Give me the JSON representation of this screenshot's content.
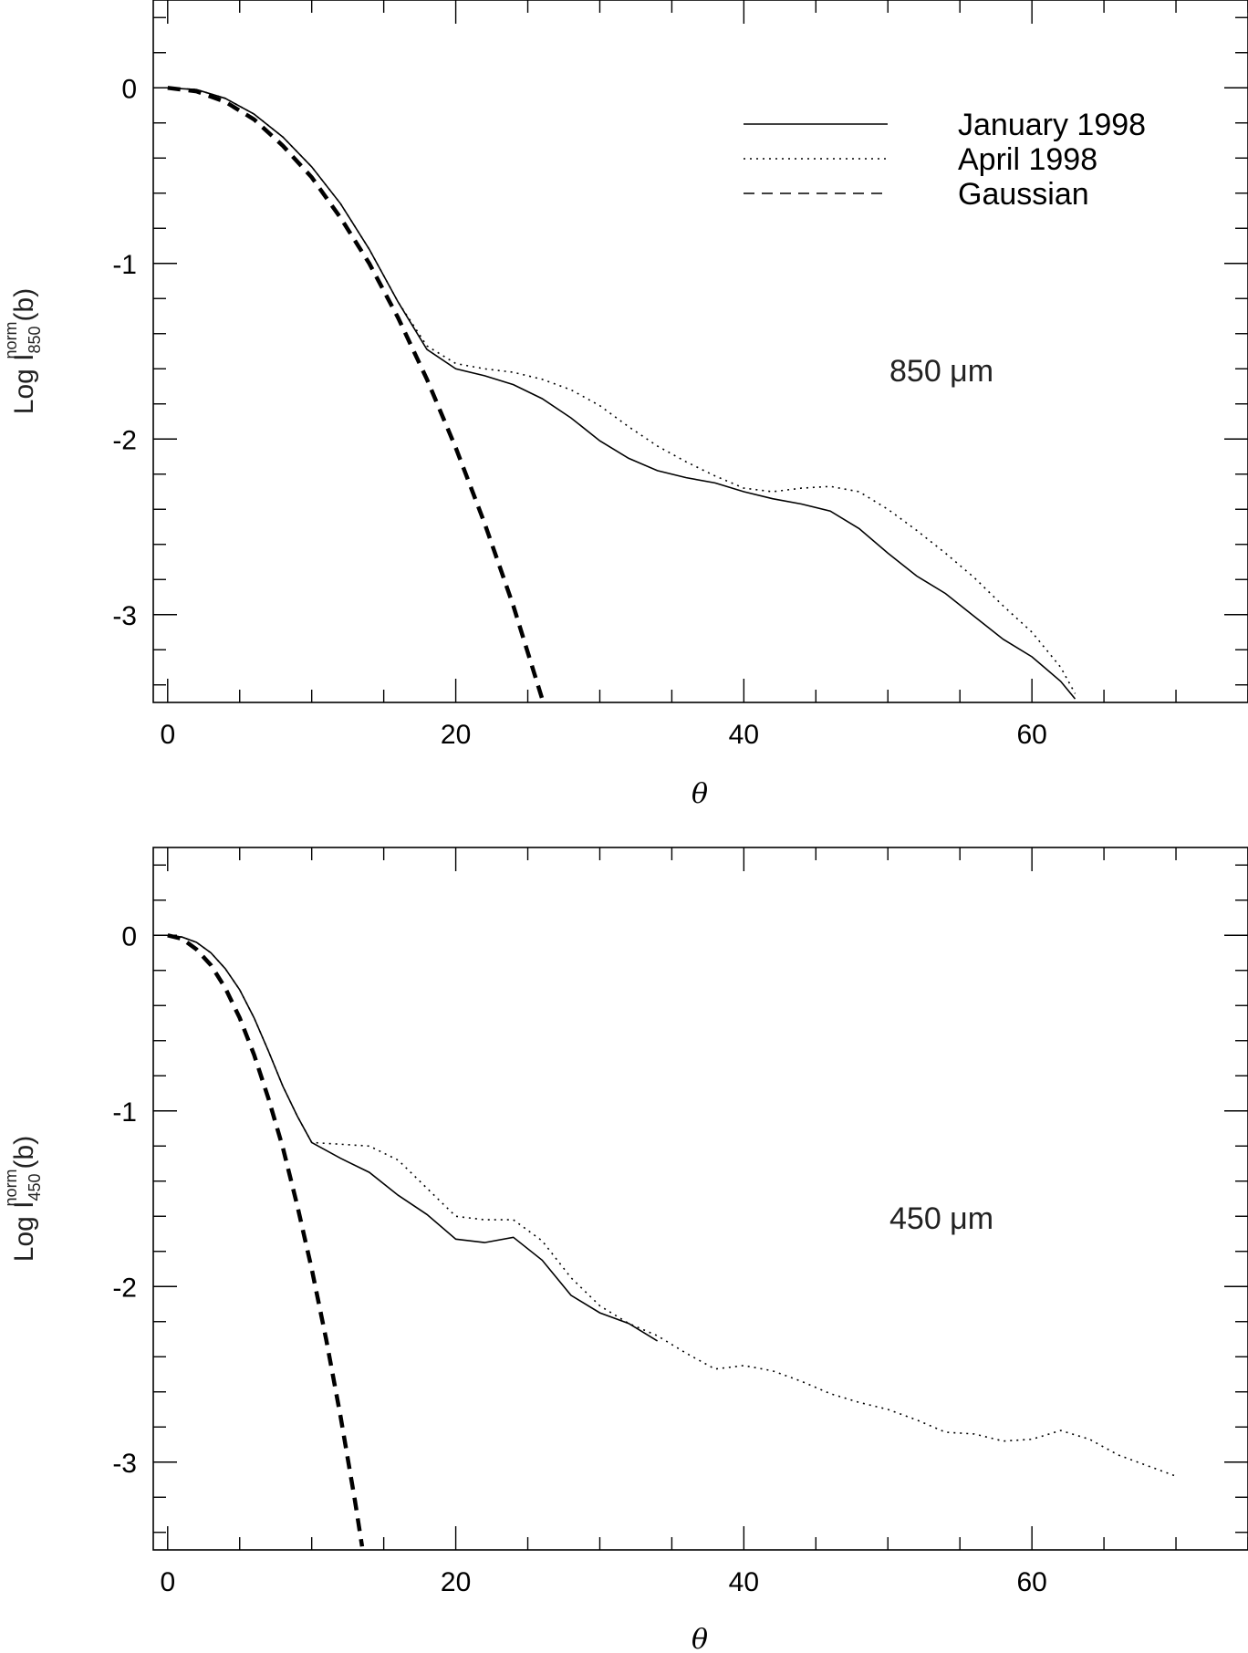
{
  "chart_data": [
    {
      "type": "line",
      "panel": "top",
      "annotation": "850 μm",
      "xlabel": "θ",
      "ylabel": {
        "base": "Log I",
        "sub": "850",
        "sup": "norm",
        "suffix": "(b)"
      },
      "xlim": [
        -1,
        75
      ],
      "ylim": [
        -3.5,
        0.5
      ],
      "xticks": [
        0,
        20,
        40,
        60
      ],
      "xtick_labels": [
        "0",
        "20",
        "40",
        "60"
      ],
      "yticks": [
        0,
        -1,
        -2,
        -3
      ],
      "ytick_labels": [
        "0",
        "-1",
        "-2",
        "-3"
      ],
      "legend_placement": "top-right",
      "series": [
        {
          "name": "January 1998",
          "style": "solid",
          "x": [
            0,
            2,
            4,
            6,
            8,
            10,
            12,
            14,
            16,
            18,
            20,
            22,
            24,
            26,
            28,
            30,
            32,
            34,
            36,
            38,
            40,
            42,
            44,
            46,
            48,
            50,
            52,
            54,
            56,
            58,
            60,
            62,
            63
          ],
          "y": [
            0.0,
            -0.01,
            -0.06,
            -0.15,
            -0.28,
            -0.45,
            -0.66,
            -0.92,
            -1.22,
            -1.49,
            -1.6,
            -1.64,
            -1.69,
            -1.77,
            -1.88,
            -2.01,
            -2.11,
            -2.18,
            -2.22,
            -2.25,
            -2.3,
            -2.34,
            -2.37,
            -2.41,
            -2.51,
            -2.65,
            -2.78,
            -2.88,
            -3.01,
            -3.14,
            -3.24,
            -3.38,
            -3.48
          ]
        },
        {
          "name": "April 1998",
          "style": "dotted",
          "x": [
            0,
            2,
            4,
            6,
            8,
            10,
            12,
            14,
            16,
            18,
            20,
            22,
            24,
            26,
            28,
            30,
            32,
            34,
            36,
            38,
            40,
            42,
            44,
            46,
            48,
            50,
            52,
            54,
            56,
            58,
            60,
            62,
            63
          ],
          "y": [
            0.0,
            -0.01,
            -0.06,
            -0.15,
            -0.28,
            -0.45,
            -0.66,
            -0.92,
            -1.22,
            -1.47,
            -1.57,
            -1.6,
            -1.62,
            -1.66,
            -1.72,
            -1.81,
            -1.93,
            -2.04,
            -2.13,
            -2.21,
            -2.28,
            -2.3,
            -2.28,
            -2.27,
            -2.3,
            -2.4,
            -2.52,
            -2.65,
            -2.79,
            -2.95,
            -3.1,
            -3.3,
            -3.45
          ]
        },
        {
          "name": "Gaussian",
          "style": "dashed-thick",
          "x": [
            0,
            2,
            4,
            6,
            8,
            10,
            12,
            14,
            16,
            18,
            20,
            22,
            24,
            26
          ],
          "y": [
            0.0,
            -0.02,
            -0.08,
            -0.18,
            -0.33,
            -0.51,
            -0.74,
            -1.0,
            -1.31,
            -1.66,
            -2.05,
            -2.48,
            -2.95,
            -3.48
          ]
        }
      ]
    },
    {
      "type": "line",
      "panel": "bottom",
      "annotation": "450 μm",
      "xlabel": "θ",
      "ylabel": {
        "base": "Log I",
        "sub": "450",
        "sup": "norm",
        "suffix": "(b)"
      },
      "xlim": [
        -1,
        75
      ],
      "ylim": [
        -3.5,
        0.5
      ],
      "xticks": [
        0,
        20,
        40,
        60
      ],
      "xtick_labels": [
        "0",
        "20",
        "40",
        "60"
      ],
      "yticks": [
        0,
        -1,
        -2,
        -3
      ],
      "ytick_labels": [
        "0",
        "-1",
        "-2",
        "-3"
      ],
      "series": [
        {
          "name": "January 1998",
          "style": "solid",
          "x": [
            0,
            1,
            2,
            3,
            4,
            5,
            6,
            7,
            8,
            9,
            10,
            12,
            14,
            16,
            18,
            20,
            22,
            24,
            26,
            28,
            30,
            32,
            34
          ],
          "y": [
            0.0,
            -0.01,
            -0.04,
            -0.1,
            -0.19,
            -0.31,
            -0.47,
            -0.66,
            -0.86,
            -1.03,
            -1.18,
            -1.27,
            -1.35,
            -1.48,
            -1.59,
            -1.73,
            -1.75,
            -1.72,
            -1.85,
            -2.05,
            -2.15,
            -2.21,
            -2.31
          ]
        },
        {
          "name": "April 1998",
          "style": "dotted",
          "x": [
            0,
            1,
            2,
            3,
            4,
            5,
            6,
            7,
            8,
            9,
            10,
            12,
            14,
            16,
            18,
            20,
            22,
            24,
            26,
            28,
            30,
            32,
            34,
            36,
            38,
            40,
            42,
            44,
            46,
            48,
            50,
            52,
            54,
            56,
            58,
            60,
            62,
            64,
            66,
            68,
            70
          ],
          "y": [
            0.0,
            -0.01,
            -0.04,
            -0.1,
            -0.19,
            -0.31,
            -0.47,
            -0.66,
            -0.86,
            -1.03,
            -1.18,
            -1.19,
            -1.2,
            -1.28,
            -1.44,
            -1.6,
            -1.62,
            -1.62,
            -1.74,
            -1.95,
            -2.11,
            -2.21,
            -2.28,
            -2.38,
            -2.47,
            -2.45,
            -2.48,
            -2.54,
            -2.61,
            -2.66,
            -2.7,
            -2.76,
            -2.83,
            -2.84,
            -2.88,
            -2.87,
            -2.82,
            -2.87,
            -2.96,
            -3.02,
            -3.08
          ]
        },
        {
          "name": "Gaussian",
          "style": "dashed-thick",
          "x": [
            0,
            1,
            2,
            3,
            4,
            5,
            6,
            7,
            8,
            9,
            10,
            11,
            12,
            13,
            13.5
          ],
          "y": [
            0.0,
            -0.02,
            -0.08,
            -0.17,
            -0.3,
            -0.47,
            -0.68,
            -0.93,
            -1.21,
            -1.54,
            -1.9,
            -2.3,
            -2.74,
            -3.22,
            -3.48
          ]
        }
      ]
    }
  ]
}
